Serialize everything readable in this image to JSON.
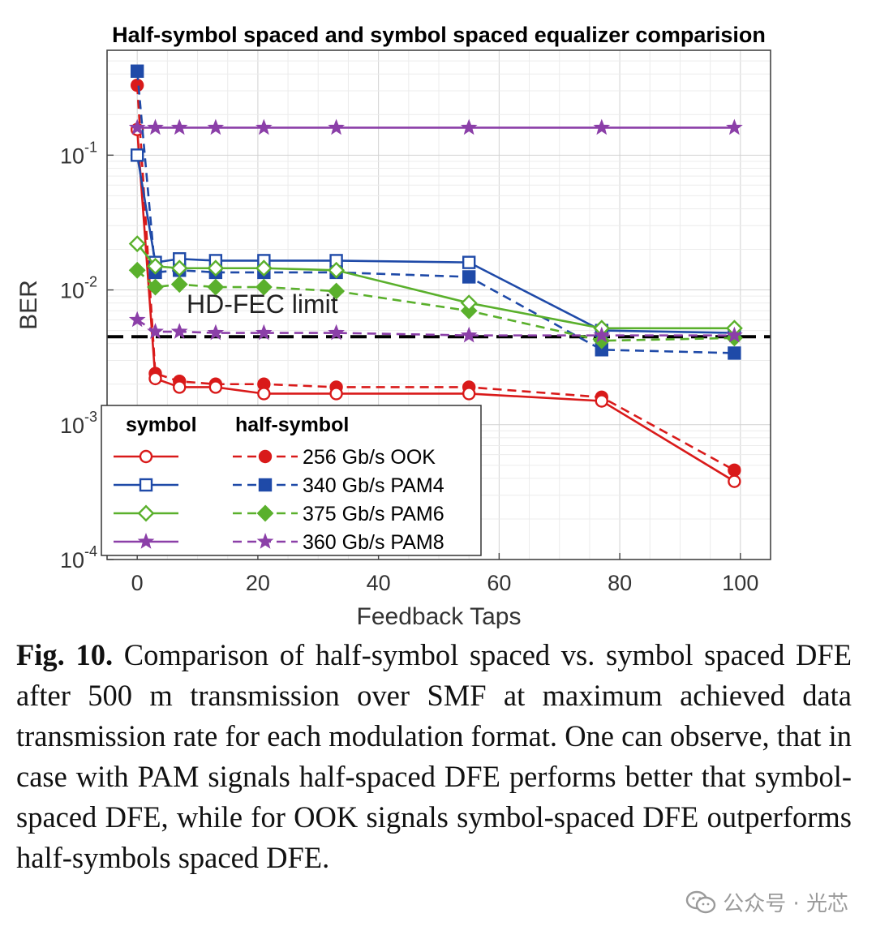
{
  "chart_data": {
    "type": "line",
    "title": "Half-symbol spaced and symbol spaced equalizer comparision",
    "xlabel": "Feedback Taps",
    "ylabel": "BER",
    "xlim": [
      -5,
      105
    ],
    "ylim": [
      0.0001,
      0.6
    ],
    "y_scale": "log",
    "x_ticks": [
      "0",
      "20",
      "40",
      "60",
      "80",
      "100"
    ],
    "y_ticks": [
      {
        "base": "10",
        "exp": "-1",
        "value": 0.1
      },
      {
        "base": "10",
        "exp": "-2",
        "value": 0.01
      },
      {
        "base": "10",
        "exp": "-3",
        "value": 0.001
      },
      {
        "base": "10",
        "exp": "-4",
        "value": 0.0001
      }
    ],
    "grid": true,
    "legend_position": "bottom-left",
    "legend_headers": {
      "symbol": "symbol",
      "half_symbol": "half-symbol"
    },
    "annotation": {
      "text": "HD-FEC limit",
      "y": 0.0045
    },
    "threshold": {
      "y": 0.0045,
      "color": "#000000"
    },
    "series": [
      {
        "name": "256 Gb/s OOK",
        "color": "#d91a1a",
        "marker": "circle",
        "symbol_x": [
          0,
          3,
          7,
          13,
          21,
          33,
          55,
          77,
          99
        ],
        "symbol_y": [
          0.155,
          0.0022,
          0.0019,
          0.0019,
          0.0017,
          0.0017,
          0.0017,
          0.0015,
          0.00038
        ],
        "half_x": [
          0,
          3,
          7,
          13,
          21,
          33,
          55,
          77,
          99
        ],
        "half_y": [
          0.33,
          0.0024,
          0.0021,
          0.002,
          0.002,
          0.0019,
          0.0019,
          0.0016,
          0.00046
        ]
      },
      {
        "name": "340 Gb/s PAM4",
        "color": "#1f4aa8",
        "marker": "square",
        "symbol_x": [
          0,
          3,
          7,
          13,
          21,
          33,
          55,
          77,
          99
        ],
        "symbol_y": [
          0.1,
          0.016,
          0.017,
          0.0165,
          0.0165,
          0.0165,
          0.016,
          0.005,
          0.0048
        ],
        "half_x": [
          0,
          3,
          7,
          13,
          21,
          33,
          55,
          77,
          99
        ],
        "half_y": [
          0.42,
          0.0135,
          0.014,
          0.0135,
          0.0135,
          0.0135,
          0.0125,
          0.0036,
          0.0034
        ]
      },
      {
        "name": "375 Gb/s PAM6",
        "color": "#5ab02c",
        "marker": "diamond",
        "symbol_x": [
          0,
          3,
          7,
          13,
          21,
          33,
          55,
          77,
          99
        ],
        "symbol_y": [
          0.022,
          0.015,
          0.0145,
          0.0145,
          0.0145,
          0.014,
          0.008,
          0.0052,
          0.0052
        ],
        "half_x": [
          0,
          3,
          7,
          13,
          21,
          33,
          55,
          77,
          99
        ],
        "half_y": [
          0.014,
          0.0105,
          0.011,
          0.0105,
          0.0105,
          0.0098,
          0.007,
          0.0042,
          0.0044
        ]
      },
      {
        "name": "360 Gb/s PAM8",
        "color": "#8b3fa8",
        "marker": "star",
        "symbol_x": [
          0,
          3,
          7,
          13,
          21,
          33,
          55,
          77,
          99
        ],
        "symbol_y": [
          0.16,
          0.16,
          0.16,
          0.16,
          0.16,
          0.16,
          0.16,
          0.16,
          0.16
        ],
        "half_x": [
          0,
          3,
          7,
          13,
          21,
          33,
          55,
          77,
          99
        ],
        "half_y": [
          0.006,
          0.0049,
          0.0049,
          0.0048,
          0.0048,
          0.0048,
          0.0046,
          0.0046,
          0.0046
        ]
      }
    ]
  },
  "caption": {
    "label": "Fig. 10.",
    "text": "Comparison of half-symbol spaced vs. symbol spaced DFE after 500 m transmission over SMF at maximum achieved data transmission rate for each modulation format. One can observe, that in case with PAM signals half-spaced DFE performs better that symbol-spaced DFE, while for OOK signals symbol-spaced DFE outperforms half-symbols spaced DFE."
  },
  "watermark": {
    "text": "公众号 · 光芯",
    "icon": "wechat-icon"
  }
}
